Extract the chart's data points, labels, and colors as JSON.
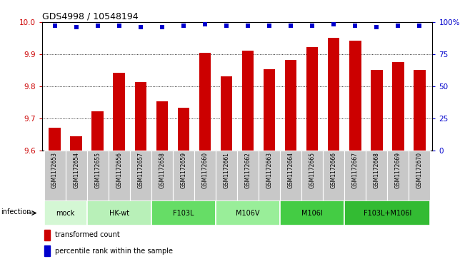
{
  "title": "GDS4998 / 10548194",
  "samples": [
    "GSM1172653",
    "GSM1172654",
    "GSM1172655",
    "GSM1172656",
    "GSM1172657",
    "GSM1172658",
    "GSM1172659",
    "GSM1172660",
    "GSM1172661",
    "GSM1172662",
    "GSM1172663",
    "GSM1172664",
    "GSM1172665",
    "GSM1172666",
    "GSM1172667",
    "GSM1172668",
    "GSM1172669",
    "GSM1172670"
  ],
  "bar_values": [
    9.671,
    9.643,
    9.722,
    9.842,
    9.813,
    9.752,
    9.733,
    9.904,
    9.831,
    9.91,
    9.853,
    9.882,
    9.922,
    9.951,
    9.942,
    9.851,
    9.876,
    9.851
  ],
  "percentile_values": [
    97,
    96,
    97,
    97,
    96,
    96,
    97,
    98,
    97,
    97,
    97,
    97,
    97,
    98,
    97,
    96,
    97,
    97
  ],
  "ylim_left": [
    9.6,
    10.0
  ],
  "ylim_right": [
    0,
    100
  ],
  "yticks_left": [
    9.6,
    9.7,
    9.8,
    9.9,
    10.0
  ],
  "yticks_right": [
    0,
    25,
    50,
    75,
    100
  ],
  "ytick_right_labels": [
    "0",
    "25",
    "50",
    "75",
    "100%"
  ],
  "bar_color": "#cc0000",
  "dot_color": "#0000cc",
  "bar_width": 0.55,
  "groups": [
    {
      "label": "mock",
      "start": 0,
      "end": 2,
      "color": "#d4f7d4"
    },
    {
      "label": "HK-wt",
      "start": 2,
      "end": 5,
      "color": "#b8f0b8"
    },
    {
      "label": "F103L",
      "start": 5,
      "end": 8,
      "color": "#66dd66"
    },
    {
      "label": "M106V",
      "start": 8,
      "end": 11,
      "color": "#99ee99"
    },
    {
      "label": "M106I",
      "start": 11,
      "end": 14,
      "color": "#44cc44"
    },
    {
      "label": "F103L+M106I",
      "start": 14,
      "end": 18,
      "color": "#33bb33"
    }
  ],
  "infection_label": "infection",
  "legend_bar_label": "transformed count",
  "legend_dot_label": "percentile rank within the sample",
  "left_tick_color": "#cc0000",
  "right_tick_color": "#0000cc",
  "bg_gray": "#c8c8c8",
  "fig_width": 6.51,
  "fig_height": 3.63,
  "fig_dpi": 100
}
